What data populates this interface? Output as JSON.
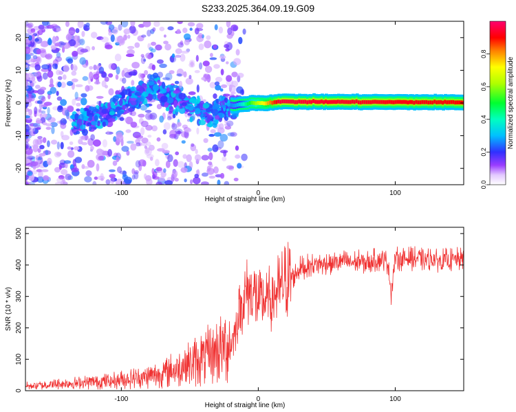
{
  "figure_title": "S233.2025.364.09.19.G09",
  "colors": {
    "snr_line": "#f03232",
    "frame": "#000000"
  },
  "chart_data": [
    {
      "type": "heatmap",
      "title": "S233.2025.364.09.19.G09",
      "xlabel": "Height of straight line (km)",
      "ylabel": "Frequency (Hz)",
      "xlim": [
        -170,
        150
      ],
      "ylim": [
        -25,
        25
      ],
      "x_ticks": [
        -100,
        0,
        100
      ],
      "x_tick_labels": [
        "-100",
        "0",
        "100"
      ],
      "y_ticks": [
        -20,
        -10,
        0,
        10,
        20
      ],
      "y_tick_labels": [
        "-20",
        "-10",
        "0",
        "10",
        "20"
      ],
      "colorbar": {
        "label": "Normalized spectral amplitude",
        "range": [
          0,
          1
        ],
        "ticks": [
          0.0,
          0.2,
          0.4,
          0.6,
          0.8
        ],
        "tick_labels": [
          "0.0",
          "0.2",
          "0.4",
          "0.6",
          "0.8"
        ],
        "colormap": [
          "#ffffff",
          "#7b2cff",
          "#2020ff",
          "#00e5ff",
          "#00ff40",
          "#a0ff00",
          "#ffff00",
          "#ff8000",
          "#ff0000",
          "#ff0080"
        ]
      },
      "ridge": {
        "x": [
          -130,
          -110,
          -95,
          -85,
          -75,
          -65,
          -55,
          -45,
          -35,
          -25,
          -15,
          -5,
          5,
          15,
          150
        ],
        "frequency": [
          -6,
          -3,
          1,
          3,
          4,
          2,
          1,
          -1,
          -4,
          -1,
          -0.5,
          0,
          0,
          0.4,
          0.2
        ],
        "normalized_amplitude": [
          0.35,
          0.3,
          0.3,
          0.25,
          0.25,
          0.22,
          0.2,
          0.25,
          0.25,
          0.22,
          0.3,
          0.55,
          0.75,
          0.95,
          0.9
        ]
      }
    },
    {
      "type": "line",
      "xlabel": "Height of straight line (km)",
      "ylabel": "SNR (10 * v/v)",
      "xlim": [
        -170,
        150
      ],
      "ylim": [
        0,
        520
      ],
      "x_ticks": [
        -100,
        0,
        100
      ],
      "x_tick_labels": [
        "-100",
        "0",
        "100"
      ],
      "y_ticks": [
        0,
        100,
        200,
        300,
        400,
        500
      ],
      "y_tick_labels": [
        "0",
        "100",
        "200",
        "300",
        "400",
        "500"
      ],
      "series": [
        {
          "name": "SNR",
          "x": [
            -170,
            -150,
            -130,
            -110,
            -100,
            -90,
            -80,
            -70,
            -60,
            -50,
            -40,
            -30,
            -25,
            -20,
            -18,
            -15,
            -12,
            -10,
            -5,
            0,
            5,
            10,
            15,
            20,
            25,
            30,
            40,
            50,
            60,
            70,
            80,
            90,
            95,
            97,
            100,
            110,
            120,
            130,
            140,
            150
          ],
          "values": [
            15,
            20,
            25,
            30,
            35,
            40,
            45,
            55,
            70,
            85,
            105,
            125,
            140,
            155,
            170,
            230,
            280,
            300,
            330,
            280,
            280,
            300,
            320,
            350,
            360,
            390,
            400,
            405,
            410,
            410,
            410,
            420,
            405,
            310,
            420,
            420,
            420,
            415,
            415,
            420
          ]
        }
      ]
    }
  ]
}
